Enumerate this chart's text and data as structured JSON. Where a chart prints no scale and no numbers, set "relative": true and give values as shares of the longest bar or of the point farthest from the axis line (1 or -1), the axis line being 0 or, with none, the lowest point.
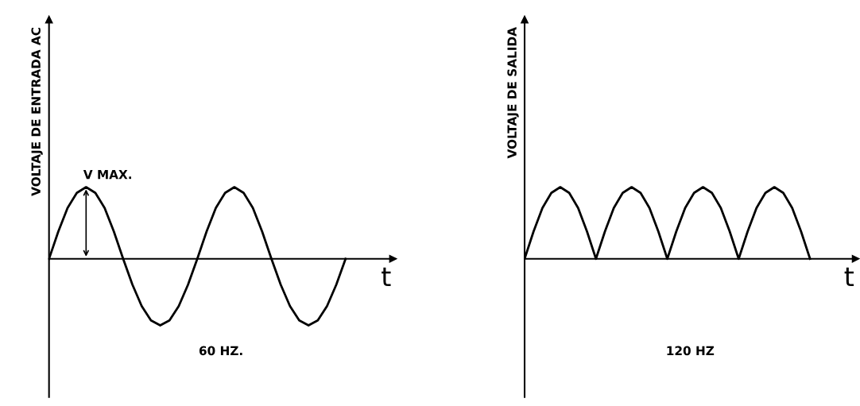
{
  "chart_data": [
    {
      "type": "line",
      "relative": true,
      "ylabel": "VOLTAJE DE ENTRADA AC",
      "xlabel": "t",
      "categories": [
        null,
        null,
        null,
        null,
        null,
        null,
        null,
        null,
        null,
        null,
        null,
        null,
        null,
        null,
        null,
        null,
        null,
        null,
        null,
        null,
        null,
        null,
        null,
        null,
        null,
        null,
        null,
        null,
        null,
        null,
        null,
        null,
        null
      ],
      "series": [
        {
          "color": "#000000",
          "values": [
            0,
            0.38,
            0.71,
            0.92,
            1,
            0.92,
            0.71,
            0.38,
            0,
            -0.36,
            -0.66,
            -0.86,
            -0.93,
            -0.86,
            -0.66,
            -0.36,
            0,
            0.38,
            0.71,
            0.92,
            1,
            0.92,
            0.71,
            0.38,
            0,
            -0.36,
            -0.66,
            -0.86,
            -0.93,
            -0.86,
            -0.66,
            -0.36,
            0
          ]
        }
      ],
      "annotations": [
        "V MAX.",
        "60 HZ."
      ],
      "tick_labels": false
    },
    {
      "type": "line",
      "relative": true,
      "ylabel": "VOLTAJE DE SALIDA",
      "xlabel": "t",
      "categories": [
        null,
        null,
        null,
        null,
        null,
        null,
        null,
        null,
        null,
        null,
        null,
        null,
        null,
        null,
        null,
        null,
        null,
        null,
        null,
        null,
        null,
        null,
        null,
        null,
        null,
        null,
        null,
        null,
        null,
        null,
        null,
        null,
        null
      ],
      "series": [
        {
          "color": "#000000",
          "values": [
            0,
            0.38,
            0.71,
            0.92,
            1,
            0.92,
            0.71,
            0.38,
            0,
            0.38,
            0.71,
            0.92,
            1,
            0.92,
            0.71,
            0.38,
            0,
            0.38,
            0.71,
            0.92,
            1,
            0.92,
            0.71,
            0.38,
            0,
            0.38,
            0.71,
            0.92,
            1,
            0.92,
            0.71,
            0.38,
            0
          ]
        }
      ],
      "annotations": [
        "120 HZ"
      ],
      "tick_labels": false
    }
  ]
}
